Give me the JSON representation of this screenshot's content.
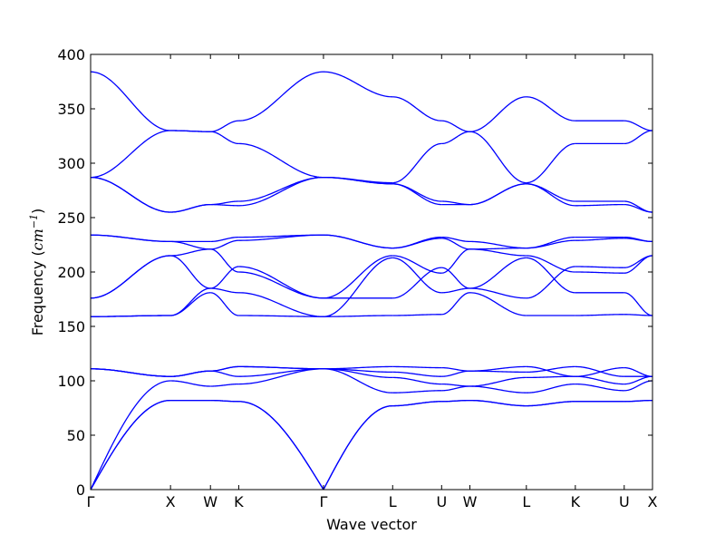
{
  "chart_data": {
    "type": "line",
    "title": "",
    "xlabel": "Wave vector",
    "ylabel_main": "Frequency (",
    "ylabel_unit": "cm",
    "ylabel_exp": "−1",
    "ylabel_close": ")",
    "ylim": [
      0,
      400
    ],
    "yticks": [
      0,
      50,
      100,
      150,
      200,
      250,
      300,
      350,
      400
    ],
    "x_axis_ticks": [
      {
        "label": "Γ",
        "x": 0.0
      },
      {
        "label": "X",
        "x": 1.0
      },
      {
        "label": "W",
        "x": 1.5
      },
      {
        "label": "K",
        "x": 1.854
      },
      {
        "label": "Γ",
        "x": 2.915
      },
      {
        "label": "L",
        "x": 3.781
      },
      {
        "label": "U",
        "x": 4.394
      },
      {
        "label": "W",
        "x": 4.748
      },
      {
        "label": "L",
        "x": 5.455
      },
      {
        "label": "K",
        "x": 6.068
      },
      {
        "label": "U",
        "x": 6.68
      },
      {
        "label": "X",
        "x": 7.034
      }
    ],
    "xlim": [
      0,
      7.034
    ],
    "series_color": "#0000ff",
    "segments": [
      {
        "from": "Γ",
        "to": "X",
        "x0": 0.0,
        "x1": 1.0,
        "shape": "half",
        "bands": [
          [
            0,
            82
          ],
          [
            0,
            82
          ],
          [
            0,
            100
          ],
          [
            111,
            104
          ],
          [
            111,
            104
          ],
          [
            111,
            104
          ],
          [
            159,
            160
          ],
          [
            159,
            160
          ],
          [
            176,
            215
          ],
          [
            176,
            215
          ],
          [
            234,
            228
          ],
          [
            234,
            228
          ],
          [
            287,
            255
          ],
          [
            287,
            255
          ],
          [
            287,
            330
          ],
          [
            384,
            330
          ]
        ]
      },
      {
        "from": "X",
        "to": "W",
        "x0": 1.0,
        "x1": 1.5,
        "shape": "cos",
        "bands": [
          [
            82,
            82
          ],
          [
            82,
            82
          ],
          [
            100,
            95
          ],
          [
            104,
            109
          ],
          [
            104,
            109
          ],
          [
            104,
            109
          ],
          [
            160,
            181
          ],
          [
            160,
            185
          ],
          [
            215,
            185
          ],
          [
            215,
            221
          ],
          [
            228,
            221
          ],
          [
            228,
            228
          ],
          [
            255,
            262
          ],
          [
            255,
            262
          ],
          [
            330,
            329
          ],
          [
            330,
            329
          ]
        ]
      },
      {
        "from": "W",
        "to": "K",
        "x0": 1.5,
        "x1": 1.854,
        "shape": "cos",
        "bands": [
          [
            82,
            81
          ],
          [
            82,
            81
          ],
          [
            95,
            97
          ],
          [
            109,
            113
          ],
          [
            109,
            113
          ],
          [
            109,
            104
          ],
          [
            181,
            160
          ],
          [
            185,
            181
          ],
          [
            185,
            205
          ],
          [
            221,
            200
          ],
          [
            221,
            229
          ],
          [
            228,
            232
          ],
          [
            262,
            265
          ],
          [
            262,
            261
          ],
          [
            329,
            318
          ],
          [
            329,
            339
          ]
        ]
      },
      {
        "from": "K",
        "to": "Γ",
        "x0": 1.854,
        "x1": 2.915,
        "shape": "full",
        "bands": [
          [
            81,
            0
          ],
          [
            81,
            0
          ],
          [
            97,
            111
          ],
          [
            113,
            111
          ],
          [
            104,
            111
          ],
          [
            113,
            111
          ],
          [
            160,
            159
          ],
          [
            181,
            159
          ],
          [
            205,
            176
          ],
          [
            200,
            176
          ],
          [
            229,
            234
          ],
          [
            232,
            234
          ],
          [
            265,
            287
          ],
          [
            261,
            287
          ],
          [
            318,
            287
          ],
          [
            339,
            384
          ]
        ]
      },
      {
        "from": "Γ",
        "to": "L",
        "x0": 2.915,
        "x1": 3.781,
        "shape": "half",
        "bands": [
          [
            0,
            77
          ],
          [
            0,
            77
          ],
          [
            111,
            89
          ],
          [
            111,
            103
          ],
          [
            111,
            108
          ],
          [
            111,
            113
          ],
          [
            159,
            160
          ],
          [
            159,
            213
          ],
          [
            176,
            176
          ],
          [
            176,
            215
          ],
          [
            234,
            222
          ],
          [
            234,
            222
          ],
          [
            287,
            281
          ],
          [
            287,
            281
          ],
          [
            287,
            282
          ],
          [
            384,
            361
          ]
        ]
      },
      {
        "from": "L",
        "to": "U",
        "x0": 3.781,
        "x1": 4.394,
        "shape": "cos",
        "bands": [
          [
            77,
            81
          ],
          [
            77,
            81
          ],
          [
            89,
            91
          ],
          [
            103,
            97
          ],
          [
            108,
            104
          ],
          [
            113,
            112
          ],
          [
            160,
            161
          ],
          [
            213,
            181
          ],
          [
            176,
            204
          ],
          [
            215,
            199
          ],
          [
            222,
            231
          ],
          [
            222,
            232
          ],
          [
            281,
            265
          ],
          [
            281,
            262
          ],
          [
            282,
            318
          ],
          [
            361,
            339
          ]
        ]
      },
      {
        "from": "U",
        "to": "W",
        "x0": 4.394,
        "x1": 4.748,
        "shape": "cos",
        "bands": [
          [
            81,
            82
          ],
          [
            81,
            82
          ],
          [
            91,
            95
          ],
          [
            97,
            95
          ],
          [
            104,
            109
          ],
          [
            112,
            109
          ],
          [
            161,
            181
          ],
          [
            181,
            185
          ],
          [
            204,
            185
          ],
          [
            199,
            221
          ],
          [
            231,
            221
          ],
          [
            232,
            228
          ],
          [
            265,
            262
          ],
          [
            262,
            262
          ],
          [
            318,
            329
          ],
          [
            339,
            329
          ]
        ]
      },
      {
        "from": "W",
        "to": "L",
        "x0": 4.748,
        "x1": 5.455,
        "shape": "cos",
        "bands": [
          [
            82,
            77
          ],
          [
            82,
            77
          ],
          [
            95,
            89
          ],
          [
            95,
            103
          ],
          [
            109,
            108
          ],
          [
            109,
            113
          ],
          [
            181,
            160
          ],
          [
            185,
            213
          ],
          [
            185,
            176
          ],
          [
            221,
            215
          ],
          [
            221,
            222
          ],
          [
            228,
            222
          ],
          [
            262,
            281
          ],
          [
            262,
            281
          ],
          [
            329,
            282
          ],
          [
            329,
            361
          ]
        ]
      },
      {
        "from": "L",
        "to": "K",
        "x0": 5.455,
        "x1": 6.068,
        "shape": "cos",
        "bands": [
          [
            77,
            81
          ],
          [
            77,
            81
          ],
          [
            89,
            97
          ],
          [
            103,
            104
          ],
          [
            108,
            113
          ],
          [
            113,
            104
          ],
          [
            160,
            160
          ],
          [
            213,
            181
          ],
          [
            176,
            205
          ],
          [
            215,
            200
          ],
          [
            222,
            229
          ],
          [
            222,
            232
          ],
          [
            281,
            265
          ],
          [
            281,
            261
          ],
          [
            282,
            318
          ],
          [
            361,
            339
          ]
        ]
      },
      {
        "from": "K",
        "to": "U",
        "x0": 6.068,
        "x1": 6.68,
        "shape": "cos",
        "bands": [
          [
            81,
            81
          ],
          [
            81,
            81
          ],
          [
            97,
            91
          ],
          [
            104,
            97
          ],
          [
            113,
            104
          ],
          [
            104,
            112
          ],
          [
            160,
            161
          ],
          [
            181,
            181
          ],
          [
            205,
            204
          ],
          [
            200,
            199
          ],
          [
            229,
            231
          ],
          [
            232,
            232
          ],
          [
            265,
            265
          ],
          [
            261,
            262
          ],
          [
            318,
            318
          ],
          [
            339,
            339
          ]
        ]
      },
      {
        "from": "U",
        "to": "X",
        "x0": 6.68,
        "x1": 7.034,
        "shape": "cos",
        "bands": [
          [
            81,
            82
          ],
          [
            81,
            82
          ],
          [
            91,
            100
          ],
          [
            97,
            104
          ],
          [
            104,
            104
          ],
          [
            112,
            104
          ],
          [
            161,
            160
          ],
          [
            181,
            160
          ],
          [
            204,
            215
          ],
          [
            199,
            215
          ],
          [
            231,
            228
          ],
          [
            232,
            228
          ],
          [
            265,
            255
          ],
          [
            262,
            255
          ],
          [
            318,
            330
          ],
          [
            339,
            330
          ]
        ]
      }
    ]
  }
}
